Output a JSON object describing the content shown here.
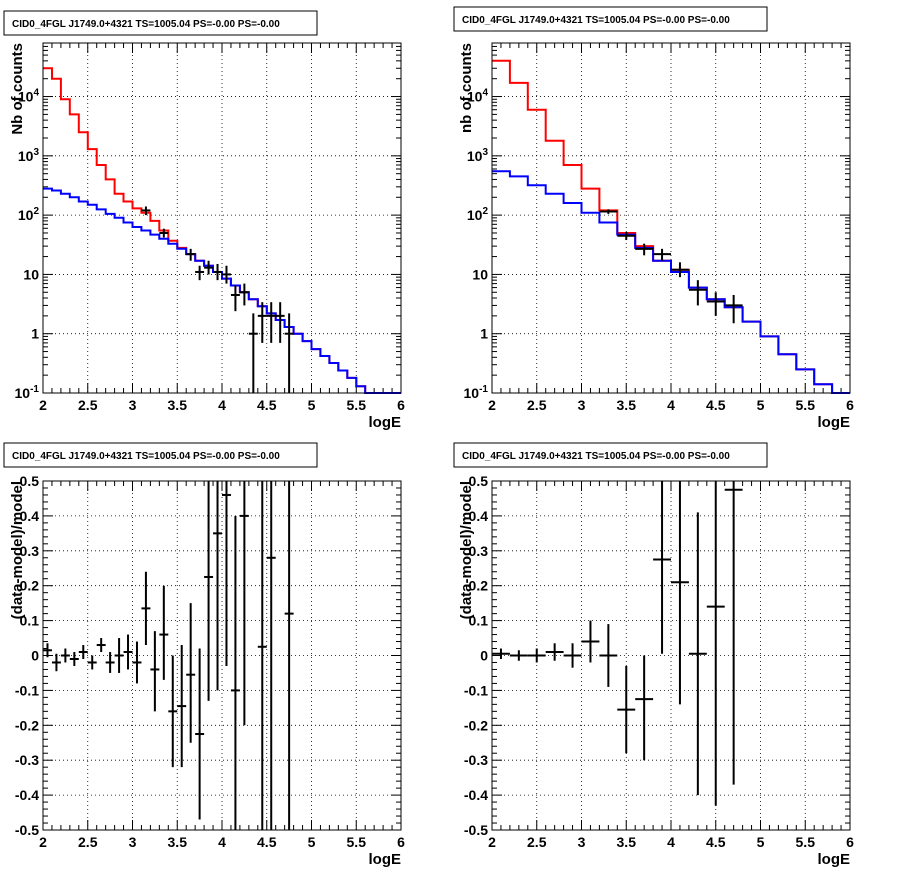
{
  "chart_data": [
    {
      "type": "line",
      "title": "CID0_4FGL J1749.0+4321 TS=1005.04 PS=-0.00 PS=-0.00",
      "xlabel": "logE",
      "ylabel": "Nb of counts",
      "xlim": [
        2,
        6
      ],
      "ylim": [
        0.1,
        80000
      ],
      "yscale": "log",
      "grid": true,
      "x_ticks": [
        "2",
        "2.5",
        "3",
        "3.5",
        "4",
        "4.5",
        "5",
        "5.5",
        "6"
      ],
      "y_ticks": [
        "10^-1",
        "1",
        "10",
        "10^2",
        "10^3",
        "10^4"
      ],
      "bin_edges": [
        2.0,
        2.1,
        2.2,
        2.3,
        2.4,
        2.5,
        2.6,
        2.7,
        2.8,
        2.9,
        3.0,
        3.1,
        3.2,
        3.3,
        3.4,
        3.5,
        3.6,
        3.7,
        3.8,
        3.9,
        4.0,
        4.1,
        4.2,
        4.3,
        4.4,
        4.5,
        4.6,
        4.7,
        4.8,
        4.9,
        5.0,
        5.1,
        5.2,
        5.3,
        5.4,
        5.5,
        5.6,
        5.7,
        5.8,
        5.9,
        6.0
      ],
      "series": [
        {
          "kind": "step",
          "color": "#ff0000",
          "values": [
            30000,
            20000,
            9000,
            5000,
            2500,
            1300,
            700,
            400,
            230,
            170,
            130,
            110,
            80,
            55,
            37,
            28,
            22,
            17,
            14,
            11,
            8.5,
            6.5,
            5,
            3.8,
            2.9,
            2.2,
            1.7,
            1.3,
            1.0,
            0.75,
            0.55,
            0.42,
            0.32,
            0.24,
            0.18,
            0.13,
            0.1,
            0.1,
            0.1,
            0.1
          ]
        },
        {
          "kind": "step",
          "color": "#0000ff",
          "values": [
            280,
            260,
            230,
            200,
            170,
            150,
            125,
            105,
            90,
            75,
            63,
            55,
            47,
            40,
            33,
            27,
            22,
            17,
            14,
            11,
            8.5,
            6.5,
            5,
            3.8,
            2.9,
            2.2,
            1.7,
            1.3,
            1.0,
            0.75,
            0.55,
            0.42,
            0.32,
            0.24,
            0.18,
            0.13,
            0.1,
            0.1,
            0.1,
            0.1
          ]
        },
        {
          "kind": "points",
          "color": "#000000",
          "points": [
            {
              "x": 3.15,
              "y": 120,
              "xerr": 0.05,
              "ylo": 100,
              "yhi": 140
            },
            {
              "x": 3.35,
              "y": 50,
              "xerr": 0.05,
              "ylo": 42,
              "yhi": 59
            },
            {
              "x": 3.65,
              "y": 22,
              "xerr": 0.05,
              "ylo": 17,
              "yhi": 27
            },
            {
              "x": 3.75,
              "y": 11,
              "xerr": 0.05,
              "ylo": 8,
              "yhi": 14
            },
            {
              "x": 3.85,
              "y": 13,
              "xerr": 0.05,
              "ylo": 10,
              "yhi": 17
            },
            {
              "x": 3.95,
              "y": 11,
              "xerr": 0.05,
              "ylo": 8,
              "yhi": 15
            },
            {
              "x": 4.05,
              "y": 10,
              "xerr": 0.05,
              "ylo": 7,
              "yhi": 14
            },
            {
              "x": 4.15,
              "y": 4.5,
              "xerr": 0.05,
              "ylo": 2.4,
              "yhi": 6.5
            },
            {
              "x": 4.25,
              "y": 5,
              "xerr": 0.05,
              "ylo": 3,
              "yhi": 7
            },
            {
              "x": 4.35,
              "y": 1,
              "xerr": 0.05,
              "ylo": 0.1,
              "yhi": 2.2
            },
            {
              "x": 4.45,
              "y": 2,
              "xerr": 0.05,
              "ylo": 0.7,
              "yhi": 3.4
            },
            {
              "x": 4.55,
              "y": 2,
              "xerr": 0.05,
              "ylo": 0.7,
              "yhi": 3.4
            },
            {
              "x": 4.65,
              "y": 2,
              "xerr": 0.05,
              "ylo": 0.7,
              "yhi": 3.4
            },
            {
              "x": 4.75,
              "y": 1,
              "xerr": 0.05,
              "ylo": 0.1,
              "yhi": 2.2
            }
          ]
        }
      ]
    },
    {
      "type": "line",
      "title": "CID0_4FGL J1749.0+4321 TS=1005.04 PS=-0.00 PS=-0.00",
      "xlabel": "logE",
      "ylabel": "nb of counts",
      "xlim": [
        2,
        6
      ],
      "ylim": [
        0.1,
        80000
      ],
      "yscale": "log",
      "grid": true,
      "x_ticks": [
        "2",
        "2.5",
        "3",
        "3.5",
        "4",
        "4.5",
        "5",
        "5.5",
        "6"
      ],
      "y_ticks": [
        "10^-1",
        "1",
        "10",
        "10^2",
        "10^3",
        "10^4"
      ],
      "bin_edges": [
        2.0,
        2.2,
        2.4,
        2.6,
        2.8,
        3.0,
        3.2,
        3.4,
        3.6,
        3.8,
        4.0,
        4.2,
        4.4,
        4.6,
        4.8,
        5.0,
        5.2,
        5.4,
        5.6,
        5.8,
        6.0
      ],
      "series": [
        {
          "kind": "step",
          "color": "#ff0000",
          "values": [
            40000,
            17000,
            6000,
            1800,
            700,
            280,
            120,
            50,
            30,
            17,
            12,
            6,
            3.8,
            2.8,
            1.6,
            0.9,
            0.45,
            0.25,
            0.14,
            0.1
          ]
        },
        {
          "kind": "step",
          "color": "#0000ff",
          "values": [
            550,
            450,
            320,
            230,
            160,
            110,
            75,
            47,
            28,
            17,
            11,
            6,
            3.8,
            2.8,
            1.6,
            0.9,
            0.45,
            0.25,
            0.14,
            0.1
          ]
        },
        {
          "kind": "points",
          "color": "#000000",
          "points": [
            {
              "x": 3.3,
              "y": 115,
              "xerr": 0.1,
              "ylo": 105,
              "yhi": 125
            },
            {
              "x": 3.5,
              "y": 45,
              "xerr": 0.1,
              "ylo": 38,
              "yhi": 52
            },
            {
              "x": 3.7,
              "y": 27,
              "xerr": 0.1,
              "ylo": 21,
              "yhi": 33
            },
            {
              "x": 3.9,
              "y": 22,
              "xerr": 0.1,
              "ylo": 17,
              "yhi": 27
            },
            {
              "x": 4.1,
              "y": 12,
              "xerr": 0.1,
              "ylo": 9,
              "yhi": 16
            },
            {
              "x": 4.3,
              "y": 5.5,
              "xerr": 0.1,
              "ylo": 3,
              "yhi": 8
            },
            {
              "x": 4.5,
              "y": 3.5,
              "xerr": 0.1,
              "ylo": 2,
              "yhi": 5
            },
            {
              "x": 4.7,
              "y": 3,
              "xerr": 0.1,
              "ylo": 1.5,
              "yhi": 4.5
            }
          ]
        }
      ]
    },
    {
      "type": "scatter",
      "title": "CID0_4FGL J1749.0+4321 TS=1005.04 PS=-0.00 PS=-0.00",
      "xlabel": "logE",
      "ylabel": "(data-model)/model",
      "xlim": [
        2,
        6
      ],
      "ylim": [
        -0.5,
        0.5
      ],
      "grid": true,
      "x_ticks": [
        "2",
        "2.5",
        "3",
        "3.5",
        "4",
        "4.5",
        "5",
        "5.5",
        "6"
      ],
      "y_ticks": [
        "-0.5",
        "-0.4",
        "-0.3",
        "-0.2",
        "-0.1",
        "0",
        "0.1",
        "0.2",
        "0.3",
        "0.4",
        "0.5"
      ],
      "series": [
        {
          "kind": "points",
          "color": "#000000",
          "points": [
            {
              "x": 2.05,
              "y": 0.015,
              "xerr": 0.05,
              "ylo": -0.005,
              "yhi": 0.035
            },
            {
              "x": 2.15,
              "y": -0.02,
              "xerr": 0.05,
              "ylo": -0.045,
              "yhi": 0.005
            },
            {
              "x": 2.25,
              "y": 0.0,
              "xerr": 0.05,
              "ylo": -0.02,
              "yhi": 0.02
            },
            {
              "x": 2.35,
              "y": -0.01,
              "xerr": 0.05,
              "ylo": -0.03,
              "yhi": 0.01
            },
            {
              "x": 2.45,
              "y": 0.01,
              "xerr": 0.05,
              "ylo": -0.01,
              "yhi": 0.03
            },
            {
              "x": 2.55,
              "y": -0.02,
              "xerr": 0.05,
              "ylo": -0.04,
              "yhi": 0.0
            },
            {
              "x": 2.65,
              "y": 0.03,
              "xerr": 0.05,
              "ylo": 0.01,
              "yhi": 0.05
            },
            {
              "x": 2.75,
              "y": -0.02,
              "xerr": 0.05,
              "ylo": -0.05,
              "yhi": 0.01
            },
            {
              "x": 2.85,
              "y": 0.0,
              "xerr": 0.05,
              "ylo": -0.05,
              "yhi": 0.05
            },
            {
              "x": 2.95,
              "y": 0.01,
              "xerr": 0.05,
              "ylo": -0.04,
              "yhi": 0.06
            },
            {
              "x": 3.05,
              "y": -0.02,
              "xerr": 0.05,
              "ylo": -0.08,
              "yhi": 0.04
            },
            {
              "x": 3.15,
              "y": 0.135,
              "xerr": 0.05,
              "ylo": 0.03,
              "yhi": 0.24
            },
            {
              "x": 3.25,
              "y": -0.04,
              "xerr": 0.05,
              "ylo": -0.16,
              "yhi": 0.07
            },
            {
              "x": 3.35,
              "y": 0.06,
              "xerr": 0.05,
              "ylo": -0.07,
              "yhi": 0.2
            },
            {
              "x": 3.45,
              "y": -0.16,
              "xerr": 0.05,
              "ylo": -0.32,
              "yhi": 0.0
            },
            {
              "x": 3.55,
              "y": -0.145,
              "xerr": 0.05,
              "ylo": -0.32,
              "yhi": 0.03
            },
            {
              "x": 3.65,
              "y": -0.055,
              "xerr": 0.05,
              "ylo": -0.25,
              "yhi": 0.15
            },
            {
              "x": 3.75,
              "y": -0.225,
              "xerr": 0.05,
              "ylo": -0.47,
              "yhi": 0.02
            },
            {
              "x": 3.85,
              "y": 0.225,
              "xerr": 0.05,
              "ylo": -0.13,
              "yhi": 0.5
            },
            {
              "x": 3.95,
              "y": 0.35,
              "xerr": 0.05,
              "ylo": -0.1,
              "yhi": 0.5
            },
            {
              "x": 4.05,
              "y": 0.46,
              "xerr": 0.05,
              "ylo": -0.03,
              "yhi": 0.5
            },
            {
              "x": 4.15,
              "y": -0.1,
              "xerr": 0.05,
              "ylo": -0.5,
              "yhi": 0.4
            },
            {
              "x": 4.25,
              "y": 0.4,
              "xerr": 0.05,
              "ylo": -0.2,
              "yhi": 0.5
            },
            {
              "x": 4.45,
              "y": 0.025,
              "xerr": 0.05,
              "ylo": -0.5,
              "yhi": 0.5
            },
            {
              "x": 4.55,
              "y": 0.28,
              "xerr": 0.05,
              "ylo": -0.5,
              "yhi": 0.5
            },
            {
              "x": 4.75,
              "y": 0.12,
              "xerr": 0.05,
              "ylo": -0.5,
              "yhi": 0.5
            }
          ]
        }
      ]
    },
    {
      "type": "scatter",
      "title": "CID0_4FGL J1749.0+4321 TS=1005.04 PS=-0.00 PS=-0.00",
      "xlabel": "logE",
      "ylabel": "(data-model)/model",
      "xlim": [
        2,
        6
      ],
      "ylim": [
        -0.5,
        0.5
      ],
      "grid": true,
      "x_ticks": [
        "2",
        "2.5",
        "3",
        "3.5",
        "4",
        "4.5",
        "5",
        "5.5",
        "6"
      ],
      "y_ticks": [
        "-0.5",
        "-0.4",
        "-0.3",
        "-0.2",
        "-0.1",
        "0",
        "0.1",
        "0.2",
        "0.3",
        "0.4",
        "0.5"
      ],
      "series": [
        {
          "kind": "points",
          "color": "#000000",
          "points": [
            {
              "x": 2.1,
              "y": 0.005,
              "xerr": 0.1,
              "ylo": -0.01,
              "yhi": 0.02
            },
            {
              "x": 2.3,
              "y": 0.0,
              "xerr": 0.1,
              "ylo": -0.015,
              "yhi": 0.015
            },
            {
              "x": 2.5,
              "y": 0.0,
              "xerr": 0.1,
              "ylo": -0.02,
              "yhi": 0.02
            },
            {
              "x": 2.7,
              "y": 0.01,
              "xerr": 0.1,
              "ylo": -0.015,
              "yhi": 0.035
            },
            {
              "x": 2.9,
              "y": 0.0,
              "xerr": 0.1,
              "ylo": -0.035,
              "yhi": 0.035
            },
            {
              "x": 3.1,
              "y": 0.04,
              "xerr": 0.1,
              "ylo": -0.02,
              "yhi": 0.1
            },
            {
              "x": 3.3,
              "y": 0.0,
              "xerr": 0.1,
              "ylo": -0.09,
              "yhi": 0.09
            },
            {
              "x": 3.5,
              "y": -0.155,
              "xerr": 0.1,
              "ylo": -0.28,
              "yhi": -0.03
            },
            {
              "x": 3.7,
              "y": -0.125,
              "xerr": 0.1,
              "ylo": -0.3,
              "yhi": 0.0
            },
            {
              "x": 3.9,
              "y": 0.275,
              "xerr": 0.1,
              "ylo": 0.005,
              "yhi": 0.5
            },
            {
              "x": 4.1,
              "y": 0.21,
              "xerr": 0.1,
              "ylo": -0.14,
              "yhi": 0.5
            },
            {
              "x": 4.3,
              "y": 0.005,
              "xerr": 0.1,
              "ylo": -0.4,
              "yhi": 0.41
            },
            {
              "x": 4.5,
              "y": 0.14,
              "xerr": 0.1,
              "ylo": -0.43,
              "yhi": 0.5
            },
            {
              "x": 4.7,
              "y": 0.475,
              "xerr": 0.1,
              "ylo": -0.37,
              "yhi": 0.5
            }
          ]
        }
      ]
    }
  ]
}
